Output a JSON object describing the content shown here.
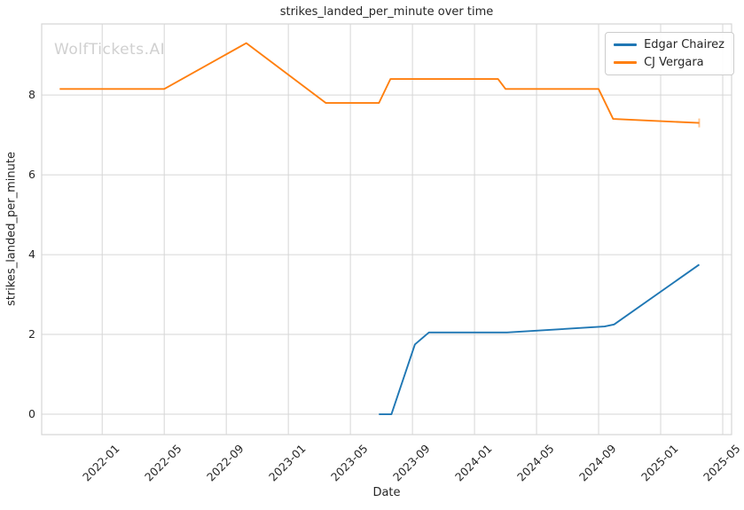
{
  "figure": {
    "watermark": "WolfTickets.AI"
  },
  "chart_data": {
    "type": "line",
    "title": "strikes_landed_per_minute over time",
    "xlabel": "Date",
    "ylabel": "strikes_landed_per_minute",
    "grid": true,
    "legend_position": "upper right",
    "background_color": "#ffffff",
    "grid_color": "#d6d6d6",
    "text_color": "#262626",
    "watermark_color": "#d0d0d0",
    "x_tick_labels": [
      "2022-01",
      "2022-05",
      "2022-09",
      "2023-01",
      "2023-05",
      "2023-09",
      "2024-01",
      "2024-05",
      "2024-09",
      "2025-01",
      "2025-05"
    ],
    "y_ticks": [
      0,
      2,
      4,
      6,
      8
    ],
    "xlim_fractional_years": [
      2021.675,
      2025.381
    ],
    "ylim": [
      -0.51,
      9.78
    ],
    "series": [
      {
        "name": "Edgar Chairez",
        "color": "#1f77b4",
        "points": [
          {
            "date": "2023-06-27",
            "value": 0.0
          },
          {
            "date": "2023-07-21",
            "value": 0.0
          },
          {
            "date": "2023-09-06",
            "value": 1.75
          },
          {
            "date": "2023-10-03",
            "value": 2.05
          },
          {
            "date": "2024-03-04",
            "value": 2.05
          },
          {
            "date": "2024-09-13",
            "value": 2.2
          },
          {
            "date": "2024-10-01",
            "value": 2.25
          },
          {
            "date": "2025-03-16",
            "value": 3.75
          }
        ]
      },
      {
        "name": "CJ Vergara",
        "color": "#ff7f0e",
        "end_marker": true,
        "points": [
          {
            "date": "2021-10-09",
            "value": 8.15
          },
          {
            "date": "2022-05-01",
            "value": 8.15
          },
          {
            "date": "2022-10-10",
            "value": 9.3
          },
          {
            "date": "2023-03-14",
            "value": 7.8
          },
          {
            "date": "2023-06-27",
            "value": 7.8
          },
          {
            "date": "2023-07-19",
            "value": 8.4
          },
          {
            "date": "2024-02-17",
            "value": 8.4
          },
          {
            "date": "2024-03-01",
            "value": 8.15
          },
          {
            "date": "2024-09-01",
            "value": 8.15
          },
          {
            "date": "2024-09-30",
            "value": 7.4
          },
          {
            "date": "2025-03-16",
            "value": 7.3
          }
        ]
      }
    ]
  }
}
